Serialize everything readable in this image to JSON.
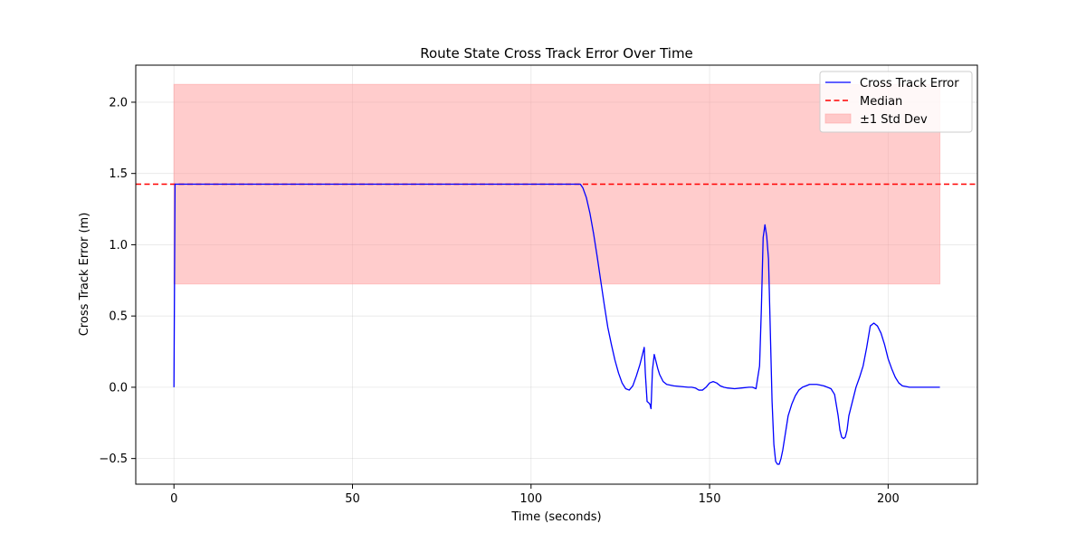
{
  "chart_data": {
    "type": "line",
    "title": "Route State Cross Track Error Over Time",
    "xlabel": "Time (seconds)",
    "ylabel": "Cross Track Error (m)",
    "xlim": [
      -10.7,
      225.0
    ],
    "ylim": [
      -0.68,
      2.26
    ],
    "xticks": [
      0,
      50,
      100,
      150,
      200
    ],
    "yticks": [
      -0.5,
      0.0,
      0.5,
      1.0,
      1.5,
      2.0
    ],
    "xtick_labels": [
      "0",
      "50",
      "100",
      "150",
      "200"
    ],
    "ytick_labels": [
      "−0.5",
      "0.0",
      "0.5",
      "1.0",
      "1.5",
      "2.0"
    ],
    "grid": true,
    "legend_position": "top-right",
    "median": 1.425,
    "std_band": {
      "x_range": [
        0,
        214.5
      ],
      "y_range": [
        0.725,
        2.125
      ]
    },
    "series": [
      {
        "name": "Cross Track Error",
        "color": "#0000ff",
        "x": [
          0,
          0.3,
          5,
          50,
          100,
          113.8,
          114.5,
          115.5,
          116.5,
          117.5,
          118.5,
          119.5,
          120.5,
          121.5,
          122.5,
          123.5,
          124.5,
          125.5,
          126.5,
          127.5,
          128.5,
          129.5,
          130.5,
          131.3,
          131.7,
          132,
          132.5,
          133,
          133.3,
          133.6,
          134,
          134.5,
          135,
          135.5,
          136,
          137,
          138,
          140,
          142,
          144,
          145,
          146,
          147,
          148,
          149,
          150,
          151,
          152,
          153,
          154,
          155,
          157,
          159,
          161,
          162,
          163,
          164,
          164.5,
          165,
          165.5,
          166,
          166.5,
          167,
          167.5,
          168,
          168.5,
          169,
          169.5,
          170,
          170.5,
          171,
          171.5,
          172,
          173,
          174,
          175,
          176,
          177,
          178,
          179,
          180,
          181,
          182,
          183,
          184,
          185,
          186,
          186.5,
          187,
          187.5,
          188,
          188.5,
          189,
          190,
          191,
          192,
          193,
          194,
          195,
          196,
          197,
          198,
          199,
          200,
          201,
          202,
          203,
          204,
          206,
          208,
          210,
          212,
          214.5
        ],
        "y": [
          0.0,
          1.425,
          1.425,
          1.425,
          1.425,
          1.425,
          1.4,
          1.33,
          1.22,
          1.08,
          0.92,
          0.75,
          0.58,
          0.42,
          0.3,
          0.19,
          0.1,
          0.03,
          -0.01,
          -0.02,
          0.01,
          0.08,
          0.16,
          0.24,
          0.28,
          0.1,
          -0.1,
          -0.11,
          -0.12,
          -0.15,
          0.12,
          0.23,
          0.18,
          0.13,
          0.09,
          0.04,
          0.02,
          0.01,
          0.005,
          0.0,
          0.0,
          -0.005,
          -0.02,
          -0.02,
          0.0,
          0.03,
          0.04,
          0.03,
          0.01,
          0.0,
          -0.005,
          -0.01,
          -0.005,
          0.0,
          0.0,
          -0.01,
          0.15,
          0.55,
          1.05,
          1.14,
          1.06,
          0.9,
          0.4,
          -0.1,
          -0.4,
          -0.52,
          -0.54,
          -0.54,
          -0.5,
          -0.44,
          -0.36,
          -0.28,
          -0.2,
          -0.12,
          -0.06,
          -0.02,
          0.0,
          0.01,
          0.02,
          0.02,
          0.02,
          0.015,
          0.01,
          0.0,
          -0.01,
          -0.05,
          -0.2,
          -0.3,
          -0.35,
          -0.36,
          -0.35,
          -0.3,
          -0.2,
          -0.1,
          0.0,
          0.07,
          0.15,
          0.28,
          0.43,
          0.45,
          0.43,
          0.38,
          0.3,
          0.2,
          0.13,
          0.07,
          0.03,
          0.01,
          0.0,
          0.0,
          0.0,
          0.0,
          0.0
        ]
      },
      {
        "name": "Median",
        "color": "#ff0000",
        "style": "dashed",
        "value": 1.425
      },
      {
        "name": "±1 Std Dev",
        "color": "#ff9999",
        "style": "band"
      }
    ]
  }
}
